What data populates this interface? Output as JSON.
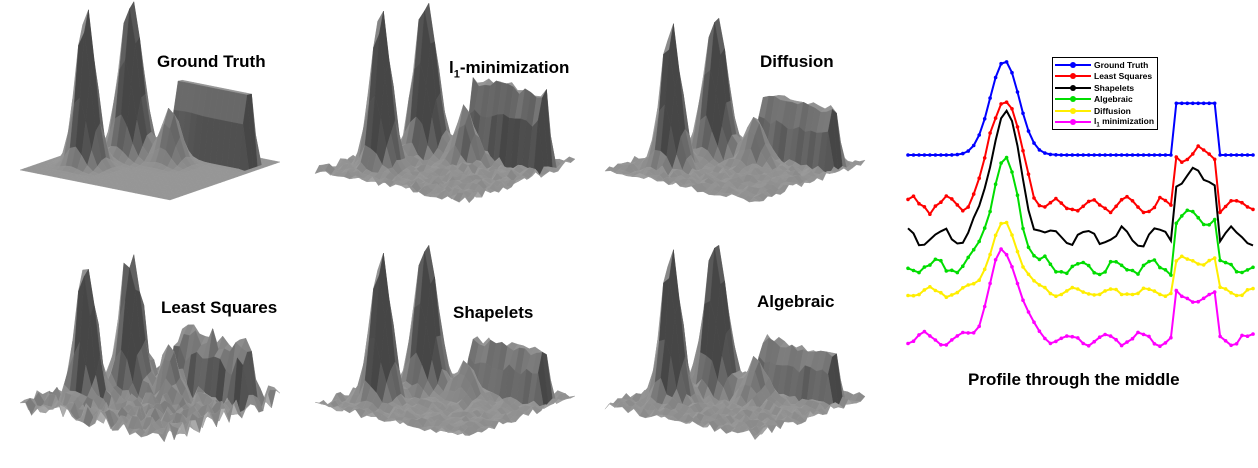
{
  "surfaces": [
    {
      "id": "ground-truth",
      "title_main": "",
      "title_sub": "",
      "title": "Ground Truth",
      "noise": 0,
      "peaks": [
        1.0,
        1.0,
        0.35,
        0.45
      ]
    },
    {
      "id": "l1",
      "title_main": "l",
      "title_sub": "1",
      "title": "-minimization",
      "noise": 0.25,
      "peaks": [
        1.0,
        1.0,
        0.35,
        0.45
      ]
    },
    {
      "id": "diffusion",
      "title_main": "",
      "title_sub": "",
      "title": "Diffusion",
      "noise": 0.2,
      "peaks": [
        0.9,
        0.9,
        0.3,
        0.35
      ]
    },
    {
      "id": "least-squares",
      "title_main": "",
      "title_sub": "",
      "title": "Least Squares",
      "noise": 0.55,
      "peaks": [
        0.9,
        0.9,
        0.3,
        0.35
      ]
    },
    {
      "id": "shapelets",
      "title_main": "",
      "title_sub": "",
      "title": "Shapelets",
      "noise": 0.22,
      "peaks": [
        0.95,
        0.95,
        0.25,
        0.3
      ]
    },
    {
      "id": "algebraic",
      "title_main": "",
      "title_sub": "",
      "title": "Algebraic",
      "noise": 0.25,
      "peaks": [
        0.95,
        0.95,
        0.25,
        0.3
      ]
    }
  ],
  "chart_data": {
    "type": "line",
    "title": "Profile through the middle",
    "legend_position": "top-right",
    "series": [
      {
        "name": "Ground Truth",
        "color": "#0000ff"
      },
      {
        "name": "Least Squares",
        "color": "#ff0000"
      },
      {
        "name": "Shapelets",
        "color": "#000000"
      },
      {
        "name": "Algebraic",
        "color": "#00dd00"
      },
      {
        "name": "Diffusion",
        "color": "#ffee00"
      },
      {
        "name": "l1 minimization",
        "label_main": "l",
        "label_sub": "1",
        "label_rest": " minimization",
        "color": "#ff00ff"
      }
    ]
  }
}
